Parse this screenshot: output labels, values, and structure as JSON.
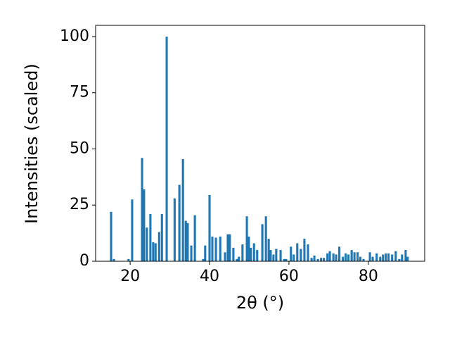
{
  "chart_data": {
    "type": "bar",
    "xlabel": "2θ (°)",
    "ylabel": "Intensities (scaled)",
    "color": "#1f77b4",
    "x": [
      15.2,
      15.9,
      19.6,
      20.5,
      23.0,
      23.5,
      24.2,
      25.1,
      25.8,
      26.4,
      27.3,
      28.0,
      29.2,
      31.2,
      32.4,
      33.3,
      34.0,
      34.5,
      35.4,
      36.3,
      38.4,
      38.9,
      40.0,
      40.7,
      41.6,
      42.7,
      43.9,
      44.6,
      45.1,
      46.0,
      46.9,
      47.4,
      48.3,
      49.4,
      49.9,
      50.4,
      51.2,
      52.0,
      53.3,
      54.2,
      54.9,
      55.4,
      56.1,
      56.8,
      57.9,
      58.8,
      59.3,
      60.5,
      61.2,
      62.1,
      63.0,
      63.9,
      64.8,
      65.7,
      66.4,
      67.3,
      68.1,
      68.8,
      69.7,
      70.3,
      71.2,
      71.9,
      72.7,
      73.6,
      74.3,
      75.0,
      75.8,
      76.5,
      77.3,
      78.0,
      78.8,
      80.4,
      81.1,
      82.1,
      83.0,
      83.7,
      84.4,
      85.1,
      86.0,
      86.9,
      87.8,
      88.5,
      89.4,
      89.9
    ],
    "values": [
      22,
      1,
      1,
      27.5,
      46,
      32,
      15,
      21,
      8.5,
      8,
      13,
      21,
      100,
      28,
      34,
      45.5,
      18,
      17,
      7,
      20.5,
      1,
      7,
      29.5,
      11,
      10.5,
      11,
      4,
      12,
      12,
      6,
      1,
      2,
      7.5,
      20,
      11,
      6,
      8,
      5,
      16.5,
      20,
      10,
      5,
      3,
      5.5,
      5,
      1,
      1,
      6.5,
      3,
      8,
      5.5,
      10,
      7.5,
      1.5,
      2.5,
      1,
      1.5,
      1.5,
      3.5,
      4.5,
      3.5,
      3,
      6.5,
      2,
      3.5,
      3,
      5,
      4,
      4,
      2,
      1,
      4,
      2,
      3.5,
      2,
      3,
      3.5,
      3.5,
      3,
      4.5,
      1,
      3,
      5,
      2
    ],
    "xlim": [
      11.3,
      94.2
    ],
    "ylim": [
      0,
      105
    ],
    "xticks": [
      20,
      40,
      60,
      80
    ],
    "yticks": [
      0,
      25,
      50,
      75,
      100
    ]
  }
}
